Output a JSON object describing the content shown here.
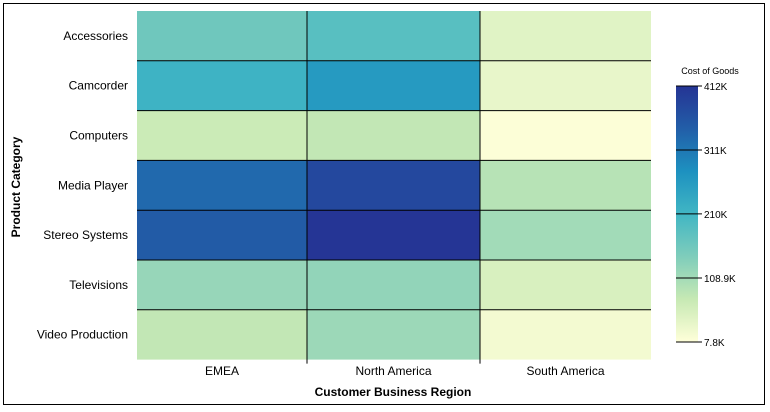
{
  "chart_data": {
    "type": "heatmap",
    "x_title": "Customer Business Region",
    "y_title": "Product Category",
    "x_categories": [
      "EMEA",
      "North America",
      "South America"
    ],
    "y_categories": [
      "Accessories",
      "Camcorder",
      "Computers",
      "Media Player",
      "Stereo Systems",
      "Televisions",
      "Video Production"
    ],
    "values": [
      [
        160000,
        185000,
        45000
      ],
      [
        215000,
        260000,
        35000
      ],
      [
        70000,
        80000,
        12000
      ],
      [
        330000,
        380000,
        90000
      ],
      [
        350000,
        410000,
        110000
      ],
      [
        120000,
        125000,
        55000
      ],
      [
        80000,
        115000,
        22000
      ]
    ],
    "colorbar": {
      "title": "Cost of Goods",
      "min": 7800,
      "max": 412000,
      "ticks": [
        {
          "value": 412000,
          "label": "412K"
        },
        {
          "value": 311000,
          "label": "311K"
        },
        {
          "value": 210000,
          "label": "210K"
        },
        {
          "value": 108900,
          "label": "108.9K"
        },
        {
          "value": 7800,
          "label": "7.8K"
        }
      ],
      "colors": [
        "#ffffd9",
        "#c7e9b4",
        "#7fcdbb",
        "#41b6c4",
        "#1d91c0",
        "#225ea8",
        "#253494"
      ]
    },
    "grid": true,
    "legend_position": "right"
  }
}
